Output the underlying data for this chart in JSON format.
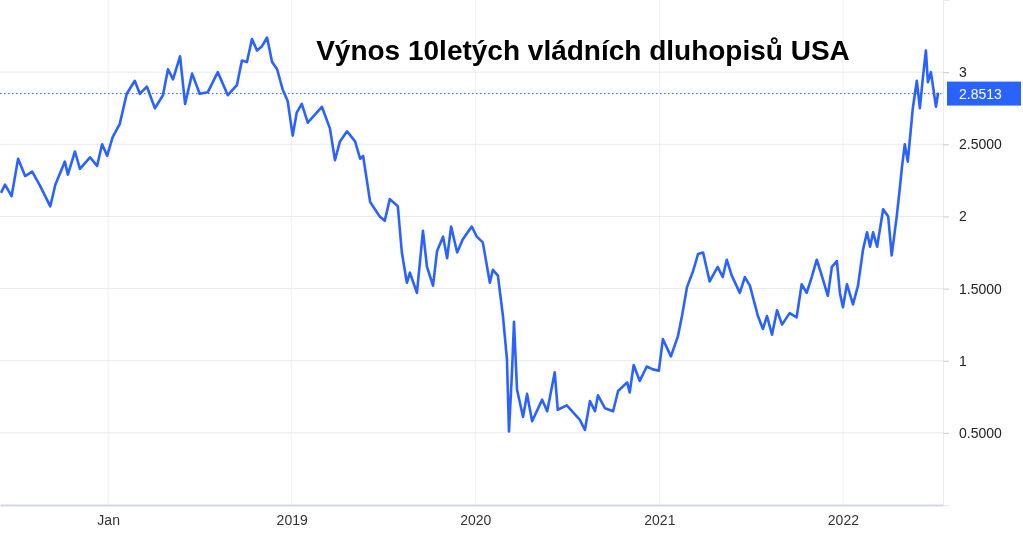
{
  "chart_data": {
    "type": "line",
    "title": "Výnos 10letých vládních dluhopisů USA",
    "xlim": [
      "2017-05-31",
      "2022-07-19"
    ],
    "xticks": [
      {
        "value": "2018-01-01",
        "label": "Jan"
      },
      {
        "value": "2019-01-01",
        "label": "2019"
      },
      {
        "value": "2020-01-01",
        "label": "2020"
      },
      {
        "value": "2021-01-01",
        "label": "2021"
      },
      {
        "value": "2022-01-01",
        "label": "2022"
      }
    ],
    "ylim": [
      0,
      3.5
    ],
    "yticks": [
      {
        "value": 0.5,
        "label": "0.5000"
      },
      1,
      {
        "value": 1.5,
        "label": "1.5000"
      },
      2,
      {
        "value": 2.5,
        "label": "2.5000"
      },
      3
    ],
    "grid": true,
    "ref_lines": [
      {
        "axis": "y",
        "value": 2.8513,
        "label": "2.8513",
        "color": "#2962ff",
        "line_style": "dotted"
      }
    ],
    "series": [
      {
        "color": "#2962ff",
        "x": [
          "2017-06-03",
          "2017-06-10",
          "2017-06-23",
          "2017-07-06",
          "2017-07-20",
          "2017-08-03",
          "2017-08-19",
          "2017-09-08",
          "2017-09-18",
          "2017-10-07",
          "2017-10-13",
          "2017-10-27",
          "2017-11-06",
          "2017-11-26",
          "2017-12-10",
          "2017-12-20",
          "2017-12-30",
          "2018-01-10",
          "2018-01-24",
          "2018-02-07",
          "2018-02-23",
          "2018-03-05",
          "2018-03-19",
          "2018-04-04",
          "2018-04-20",
          "2018-04-30",
          "2018-05-10",
          "2018-05-24",
          "2018-06-03",
          "2018-06-17",
          "2018-07-02",
          "2018-07-18",
          "2018-08-07",
          "2018-08-27",
          "2018-09-14",
          "2018-09-24",
          "2018-10-04",
          "2018-10-14",
          "2018-10-24",
          "2018-11-03",
          "2018-11-13",
          "2018-11-23",
          "2018-12-03",
          "2018-12-14",
          "2018-12-24",
          "2019-01-03",
          "2019-01-11",
          "2019-01-21",
          "2019-02-02",
          "2019-03-02",
          "2019-03-18",
          "2019-03-28",
          "2019-04-07",
          "2019-04-21",
          "2019-05-07",
          "2019-05-17",
          "2019-05-23",
          "2019-06-06",
          "2019-06-25",
          "2019-07-05",
          "2019-07-15",
          "2019-07-31",
          "2019-08-08",
          "2019-08-18",
          "2019-08-24",
          "2019-09-07",
          "2019-09-19",
          "2019-09-27",
          "2019-10-09",
          "2019-10-17",
          "2019-10-29",
          "2019-11-06",
          "2019-11-14",
          "2019-11-26",
          "2019-12-07",
          "2019-12-25",
          "2020-01-04",
          "2020-01-16",
          "2020-01-30",
          "2020-02-05",
          "2020-02-15",
          "2020-02-25",
          "2020-03-04",
          "2020-03-08",
          "2020-03-14",
          "2020-03-18",
          "2020-03-24",
          "2020-04-05",
          "2020-04-13",
          "2020-04-23",
          "2020-05-13",
          "2020-05-23",
          "2020-06-07",
          "2020-06-13",
          "2020-07-01",
          "2020-07-27",
          "2020-08-06",
          "2020-08-16",
          "2020-08-26",
          "2020-09-01",
          "2020-09-15",
          "2020-10-01",
          "2020-10-11",
          "2020-10-29",
          "2020-11-03",
          "2020-11-11",
          "2020-11-23",
          "2020-12-07",
          "2020-12-19",
          "2020-12-31",
          "2021-01-08",
          "2021-01-24",
          "2021-02-07",
          "2021-02-15",
          "2021-02-25",
          "2021-03-09",
          "2021-03-19",
          "2021-03-29",
          "2021-04-11",
          "2021-04-27",
          "2021-05-07",
          "2021-05-15",
          "2021-05-25",
          "2021-06-10",
          "2021-06-20",
          "2021-06-30",
          "2021-07-16",
          "2021-07-26",
          "2021-08-03",
          "2021-08-13",
          "2021-08-23",
          "2021-09-02",
          "2021-09-17",
          "2021-10-01",
          "2021-10-11",
          "2021-10-21",
          "2021-10-31",
          "2021-11-10",
          "2021-11-20",
          "2021-12-02",
          "2021-12-10",
          "2021-12-20",
          "2021-12-26",
          "2022-01-01",
          "2022-01-09",
          "2022-01-21",
          "2022-01-31",
          "2022-02-10",
          "2022-02-18",
          "2022-02-24",
          "2022-03-02",
          "2022-03-10",
          "2022-03-22",
          "2022-04-01",
          "2022-04-08",
          "2022-04-18",
          "2022-04-24",
          "2022-04-28",
          "2022-05-04",
          "2022-05-10",
          "2022-05-20",
          "2022-05-28",
          "2022-06-03",
          "2022-06-09",
          "2022-06-15",
          "2022-06-19",
          "2022-06-25",
          "2022-07-05",
          "2022-07-09"
        ],
        "values": [
          2.17,
          2.22,
          2.14,
          2.4,
          2.28,
          2.31,
          2.21,
          2.07,
          2.22,
          2.38,
          2.29,
          2.45,
          2.33,
          2.41,
          2.35,
          2.5,
          2.42,
          2.55,
          2.64,
          2.85,
          2.94,
          2.85,
          2.9,
          2.75,
          2.84,
          3.02,
          2.95,
          3.11,
          2.78,
          2.99,
          2.85,
          2.86,
          3.0,
          2.84,
          2.91,
          3.08,
          3.07,
          3.23,
          3.15,
          3.18,
          3.24,
          3.07,
          3.02,
          2.88,
          2.8,
          2.56,
          2.72,
          2.78,
          2.65,
          2.76,
          2.61,
          2.39,
          2.52,
          2.59,
          2.52,
          2.4,
          2.42,
          2.1,
          2.0,
          1.97,
          2.12,
          2.07,
          1.75,
          1.54,
          1.61,
          1.47,
          1.9,
          1.65,
          1.52,
          1.76,
          1.86,
          1.71,
          1.93,
          1.75,
          1.84,
          1.93,
          1.86,
          1.82,
          1.54,
          1.63,
          1.59,
          1.31,
          1.01,
          0.51,
          0.92,
          1.27,
          0.8,
          0.61,
          0.77,
          0.58,
          0.73,
          0.65,
          0.92,
          0.66,
          0.69,
          0.59,
          0.52,
          0.72,
          0.65,
          0.76,
          0.67,
          0.65,
          0.79,
          0.85,
          0.78,
          0.97,
          0.86,
          0.96,
          0.94,
          0.93,
          1.15,
          1.03,
          1.17,
          1.31,
          1.51,
          1.62,
          1.74,
          1.75,
          1.55,
          1.65,
          1.58,
          1.7,
          1.59,
          1.47,
          1.58,
          1.52,
          1.31,
          1.22,
          1.31,
          1.18,
          1.35,
          1.25,
          1.33,
          1.3,
          1.53,
          1.47,
          1.58,
          1.7,
          1.59,
          1.45,
          1.65,
          1.69,
          1.47,
          1.37,
          1.53,
          1.39,
          1.52,
          1.77,
          1.89,
          1.79,
          1.89,
          1.79,
          2.05,
          2.0,
          1.73,
          2.0,
          2.19,
          2.33,
          2.5,
          2.38,
          2.75,
          2.94,
          2.75,
          2.96,
          3.15,
          2.93,
          3.0,
          2.76,
          2.85
        ]
      }
    ]
  }
}
